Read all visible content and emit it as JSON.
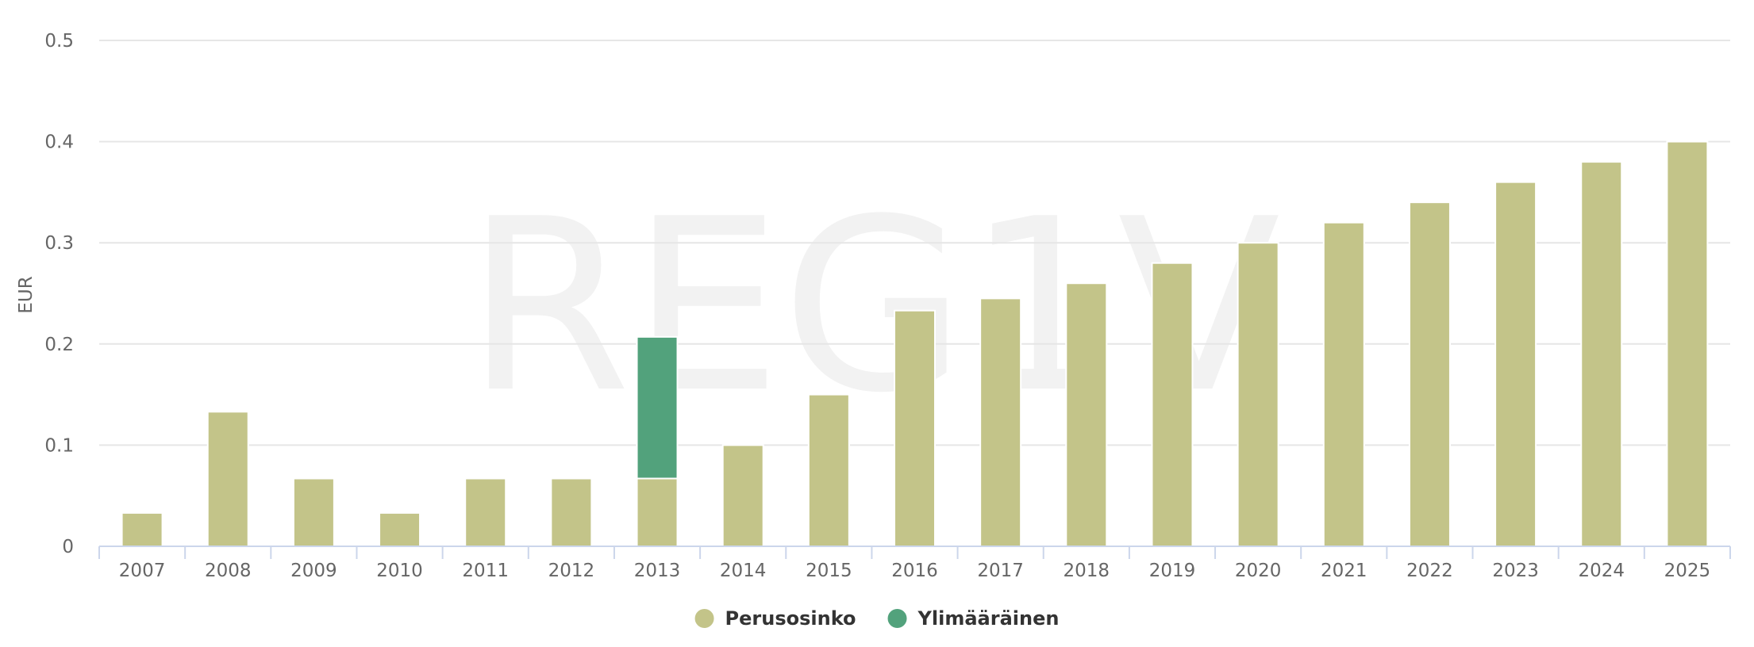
{
  "watermark": "REG1V",
  "chart_data": {
    "type": "bar",
    "stacked": true,
    "categories": [
      "2007",
      "2008",
      "2009",
      "2010",
      "2011",
      "2012",
      "2013",
      "2014",
      "2015",
      "2016",
      "2017",
      "2018",
      "2019",
      "2020",
      "2021",
      "2022",
      "2023",
      "2024",
      "2025"
    ],
    "series": [
      {
        "name": "Perusosinko",
        "color": "#c3c489",
        "values": [
          0.033,
          0.133,
          0.067,
          0.033,
          0.067,
          0.067,
          0.067,
          0.1,
          0.15,
          0.233,
          0.245,
          0.26,
          0.28,
          0.3,
          0.32,
          0.34,
          0.36,
          0.38,
          0.4
        ]
      },
      {
        "name": "Ylimääräinen",
        "color": "#52a27c",
        "values": [
          0,
          0,
          0,
          0,
          0,
          0,
          0.14,
          0,
          0,
          0,
          0,
          0,
          0,
          0,
          0,
          0,
          0,
          0,
          0
        ]
      }
    ],
    "ylabel": "EUR",
    "ylim": [
      0,
      0.5
    ],
    "yticks": [
      0,
      0.1,
      0.2,
      0.3,
      0.4,
      0.5
    ],
    "ytick_labels": [
      "0",
      "0.1",
      "0.2",
      "0.3",
      "0.4",
      "0.5"
    ],
    "grid": true,
    "legend_position": "bottom-center"
  }
}
